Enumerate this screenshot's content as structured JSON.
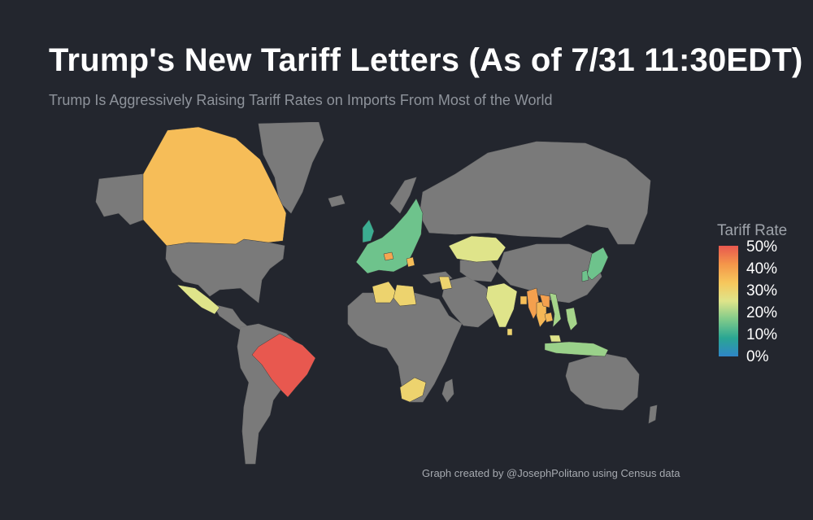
{
  "title": "Trump's New Tariff Letters (As of 7/31 11:30EDT)",
  "subtitle": "Trump Is Aggressively Raising Tariff Rates on Imports From Most of the World",
  "credit": "Graph created by @JosephPolitano using Census data",
  "legend": {
    "title": "Tariff Rate",
    "ticks": [
      "50%",
      "40%",
      "30%",
      "20%",
      "10%",
      "0%"
    ],
    "scale_colors": [
      "#e8584f",
      "#f4964a",
      "#f6c75c",
      "#dfe48a",
      "#7fca8a",
      "#2aa693",
      "#2f86c8"
    ]
  },
  "colors": {
    "background": "#23262e",
    "no_data_land": "#7a7a7a"
  },
  "countries": [
    {
      "name": "Canada",
      "rate": 35
    },
    {
      "name": "Mexico",
      "rate": 25
    },
    {
      "name": "Brazil",
      "rate": 50
    },
    {
      "name": "United Kingdom",
      "rate": 10
    },
    {
      "name": "European Union",
      "rate": 15
    },
    {
      "name": "Switzerland",
      "rate": 39
    },
    {
      "name": "Serbia",
      "rate": 35
    },
    {
      "name": "Bosnia and Herzegovina",
      "rate": 30
    },
    {
      "name": "Algeria",
      "rate": 30
    },
    {
      "name": "Libya",
      "rate": 30
    },
    {
      "name": "Iraq",
      "rate": 30
    },
    {
      "name": "Kazakhstan",
      "rate": 25
    },
    {
      "name": "India",
      "rate": 25
    },
    {
      "name": "Bangladesh",
      "rate": 35
    },
    {
      "name": "Myanmar",
      "rate": 40
    },
    {
      "name": "Thailand",
      "rate": 36
    },
    {
      "name": "Laos",
      "rate": 40
    },
    {
      "name": "Cambodia",
      "rate": 36
    },
    {
      "name": "Vietnam",
      "rate": 20
    },
    {
      "name": "Malaysia",
      "rate": 25
    },
    {
      "name": "Philippines",
      "rate": 20
    },
    {
      "name": "Indonesia",
      "rate": 19
    },
    {
      "name": "Brunei",
      "rate": 25
    },
    {
      "name": "Japan",
      "rate": 15
    },
    {
      "name": "South Korea",
      "rate": 15
    },
    {
      "name": "South Africa",
      "rate": 30
    },
    {
      "name": "Sri Lanka",
      "rate": 30
    },
    {
      "name": "Moldova",
      "rate": 25
    },
    {
      "name": "Tunisia",
      "rate": 25
    }
  ]
}
